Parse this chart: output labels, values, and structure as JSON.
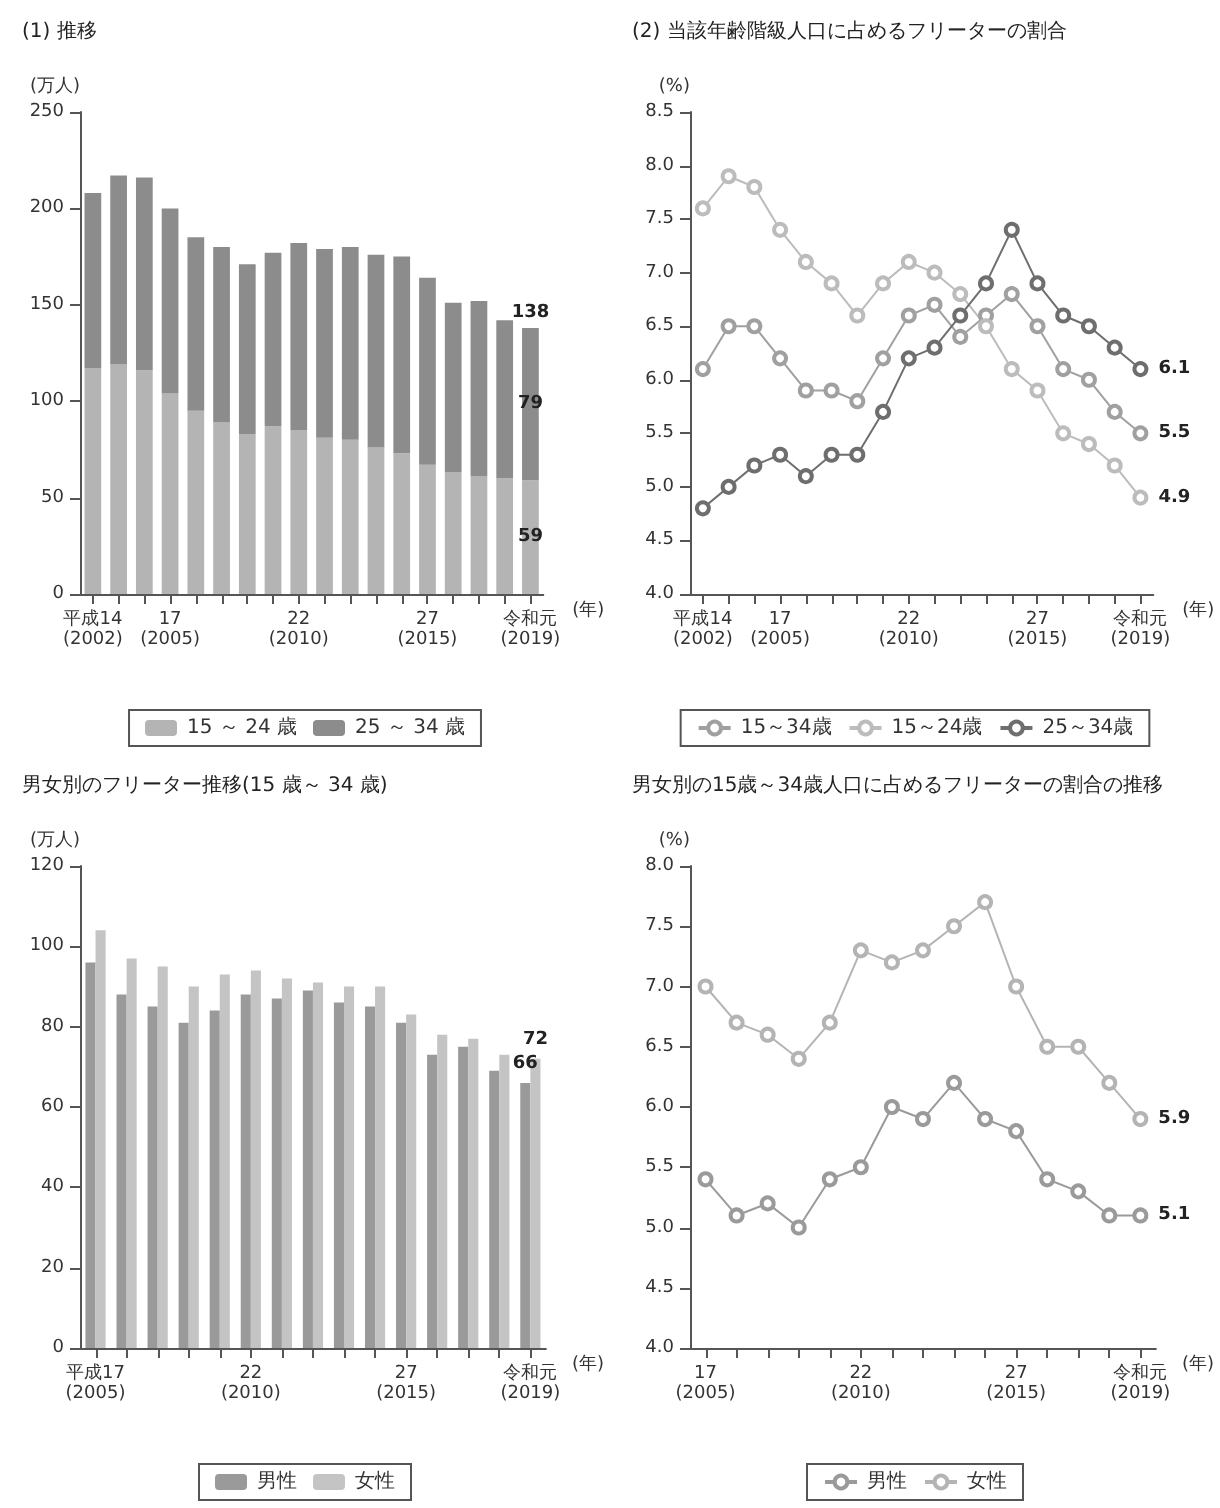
{
  "chart_data": [
    {
      "type": "bar",
      "title": "(1) 推移",
      "xlabel": "(年)",
      "ylabel": "(万人)",
      "stacked": true,
      "legend": "bottom",
      "categories": [
        "平成14\n(2002)",
        null,
        null,
        "17\n(2005)",
        null,
        null,
        null,
        null,
        "22\n(2010)",
        null,
        null,
        null,
        null,
        "27\n(2015)",
        null,
        null,
        null,
        "令和元\n(2019)"
      ],
      "ylim": [
        0,
        250
      ],
      "yticks": [
        0,
        50,
        100,
        150,
        200,
        250
      ],
      "series": [
        {
          "name": "15 ～ 24 歳",
          "color": "#b4b4b4",
          "values": [
            117,
            119,
            116,
            104,
            95,
            89,
            83,
            87,
            85,
            81,
            80,
            76,
            73,
            67,
            63,
            61,
            60,
            59
          ],
          "value_labels": [
            null,
            null,
            null,
            null,
            null,
            null,
            null,
            null,
            null,
            null,
            null,
            null,
            null,
            null,
            null,
            null,
            null,
            "59"
          ]
        },
        {
          "name": "25 ～ 34 歳",
          "color": "#8c8c8c",
          "values": [
            91,
            98,
            100,
            96,
            90,
            91,
            88,
            90,
            97,
            98,
            100,
            100,
            102,
            97,
            88,
            91,
            82,
            79
          ],
          "value_labels": [
            null,
            null,
            null,
            null,
            null,
            null,
            null,
            null,
            null,
            null,
            null,
            null,
            null,
            null,
            null,
            null,
            null,
            "79"
          ]
        }
      ],
      "totals": [
        null,
        null,
        null,
        null,
        null,
        null,
        null,
        null,
        null,
        null,
        null,
        null,
        null,
        null,
        null,
        null,
        null,
        "138"
      ]
    },
    {
      "type": "line",
      "title": "(2) 当該年齢階級人口に占めるフリーターの割合",
      "xlabel": "(年)",
      "ylabel": "(%)",
      "legend": "bottom",
      "marker": "circle",
      "categories": [
        "平成14\n(2002)",
        null,
        null,
        "17\n(2005)",
        null,
        null,
        null,
        null,
        "22\n(2010)",
        null,
        null,
        null,
        null,
        "27\n(2015)",
        null,
        null,
        null,
        "令和元\n(2019)"
      ],
      "ylim": [
        4,
        8.5
      ],
      "yticks": [
        {
          "value": 4,
          "label": "4.0"
        },
        {
          "value": 4.5,
          "label": "4.5"
        },
        {
          "value": 5,
          "label": "5.0"
        },
        {
          "value": 5.5,
          "label": "5.5"
        },
        {
          "value": 6,
          "label": "6.0"
        },
        {
          "value": 6.5,
          "label": "6.5"
        },
        {
          "value": 7,
          "label": "7.0"
        },
        {
          "value": 7.5,
          "label": "7.5"
        },
        {
          "value": 8,
          "label": "8.0"
        },
        {
          "value": 8.5,
          "label": "8.5"
        }
      ],
      "series": [
        {
          "name": "15～34歳",
          "color": "#a0a0a0",
          "values": [
            6.1,
            6.5,
            6.5,
            6.2,
            5.9,
            5.9,
            5.8,
            6.2,
            6.6,
            6.7,
            6.4,
            6.6,
            6.8,
            6.5,
            6.1,
            6.0,
            5.7,
            5.5
          ],
          "value_labels": [
            null,
            null,
            null,
            null,
            null,
            null,
            null,
            null,
            null,
            null,
            null,
            null,
            null,
            null,
            null,
            null,
            null,
            "5.5"
          ]
        },
        {
          "name": "15～24歳",
          "color": "#bcbcbc",
          "values": [
            7.6,
            7.9,
            7.8,
            7.4,
            7.1,
            6.9,
            6.6,
            6.9,
            7.1,
            7.0,
            6.8,
            6.5,
            6.1,
            5.9,
            5.5,
            5.4,
            5.2,
            4.9
          ],
          "value_labels": [
            null,
            null,
            null,
            null,
            null,
            null,
            null,
            null,
            null,
            null,
            null,
            null,
            null,
            null,
            null,
            null,
            null,
            "4.9"
          ]
        },
        {
          "name": "25～34歳",
          "color": "#6e6e6e",
          "values": [
            4.8,
            5.0,
            5.2,
            5.3,
            5.1,
            5.3,
            5.3,
            5.7,
            6.2,
            6.3,
            6.6,
            6.9,
            7.4,
            6.9,
            6.6,
            6.5,
            6.3,
            6.1
          ],
          "value_labels": [
            null,
            null,
            null,
            null,
            null,
            null,
            null,
            null,
            null,
            null,
            null,
            null,
            null,
            null,
            null,
            null,
            null,
            "6.1"
          ]
        }
      ]
    },
    {
      "type": "bar",
      "title": "男女別のフリーター推移(15 歳～ 34 歳)",
      "xlabel": "(年)",
      "ylabel": "(万人)",
      "legend": "bottom",
      "categories": [
        "平成17\n(2005)",
        null,
        null,
        null,
        null,
        "22\n(2010)",
        null,
        null,
        null,
        null,
        "27\n(2015)",
        null,
        null,
        null,
        "令和元\n(2019)"
      ],
      "ylim": [
        0,
        120
      ],
      "yticks": [
        0,
        20,
        40,
        60,
        80,
        100,
        120
      ],
      "series": [
        {
          "name": "男性",
          "color": "#9a9a9a",
          "values": [
            96,
            88,
            85,
            81,
            84,
            88,
            87,
            89,
            86,
            85,
            81,
            73,
            75,
            69,
            66
          ],
          "value_labels": [
            null,
            null,
            null,
            null,
            null,
            null,
            null,
            null,
            null,
            null,
            null,
            null,
            null,
            null,
            "66"
          ]
        },
        {
          "name": "女性",
          "color": "#c4c4c4",
          "values": [
            104,
            97,
            95,
            90,
            93,
            94,
            92,
            91,
            90,
            90,
            83,
            78,
            77,
            73,
            72
          ],
          "value_labels": [
            null,
            null,
            null,
            null,
            null,
            null,
            null,
            null,
            null,
            null,
            null,
            null,
            null,
            null,
            "72"
          ]
        }
      ]
    },
    {
      "type": "line",
      "title": "男女別の15歳～34歳人口に占めるフリーターの割合の推移",
      "xlabel": "(年)",
      "ylabel": "(%)",
      "legend": "bottom",
      "marker": "circle",
      "categories": [
        "17\n(2005)",
        null,
        null,
        null,
        null,
        "22\n(2010)",
        null,
        null,
        null,
        null,
        "27\n(2015)",
        null,
        null,
        null,
        "令和元\n(2019)"
      ],
      "ylim": [
        4,
        8
      ],
      "yticks": [
        {
          "value": 4,
          "label": "4.0"
        },
        {
          "value": 4.5,
          "label": "4.5"
        },
        {
          "value": 5,
          "label": "5.0"
        },
        {
          "value": 5.5,
          "label": "5.5"
        },
        {
          "value": 6,
          "label": "6.0"
        },
        {
          "value": 6.5,
          "label": "6.5"
        },
        {
          "value": 7,
          "label": "7.0"
        },
        {
          "value": 7.5,
          "label": "7.5"
        },
        {
          "value": 8,
          "label": "8.0"
        }
      ],
      "series": [
        {
          "name": "男性",
          "color": "#9a9a9a",
          "values": [
            5.4,
            5.1,
            5.2,
            5.0,
            5.4,
            5.5,
            6.0,
            5.9,
            6.2,
            5.9,
            5.8,
            5.4,
            5.3,
            5.1,
            5.1
          ],
          "value_labels": [
            null,
            null,
            null,
            null,
            null,
            null,
            null,
            null,
            null,
            null,
            null,
            null,
            null,
            null,
            "5.1"
          ]
        },
        {
          "name": "女性",
          "color": "#b4b4b4",
          "values": [
            7.0,
            6.7,
            6.6,
            6.4,
            6.7,
            7.3,
            7.2,
            7.3,
            7.5,
            7.7,
            7.0,
            6.5,
            6.5,
            6.2,
            5.9
          ],
          "value_labels": [
            null,
            null,
            null,
            null,
            null,
            null,
            null,
            null,
            null,
            null,
            null,
            null,
            null,
            null,
            "5.9"
          ]
        }
      ]
    }
  ]
}
